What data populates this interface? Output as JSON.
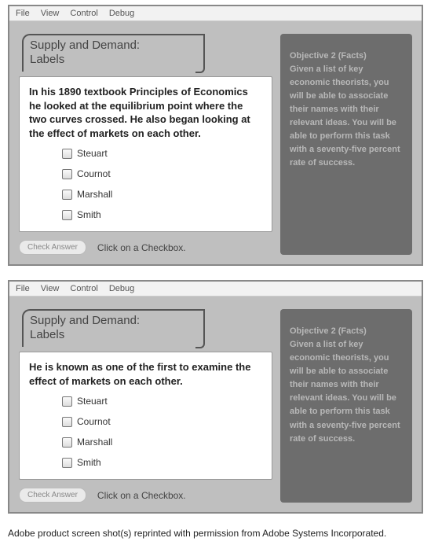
{
  "menubar": {
    "items": [
      "File",
      "View",
      "Control",
      "Debug"
    ]
  },
  "quiz": {
    "title_line1": "Supply and Demand:",
    "title_line2": "Labels",
    "check_label": "Check Answer",
    "hint": "Click on a Checkbox.",
    "options": [
      "Steuart",
      "Cournot",
      "Marshall",
      "Smith"
    ]
  },
  "screens": [
    {
      "question": "In his 1890 textbook Principles of Economics he looked at the equilibrium point where the two curves crossed. He also began looking at the effect of markets on each other."
    },
    {
      "question": "He is known as one of the first to examine the effect of markets on each other."
    }
  ],
  "objective": {
    "heading": "Objective 2 (Facts)",
    "body": "Given a list of key economic theorists, you will be able to associate their names with their relevant ideas. You will be able to perform this task with a seventy-five percent rate of success."
  },
  "caption": "Adobe product screen shot(s) reprinted with permission from Adobe Systems Incorporated."
}
